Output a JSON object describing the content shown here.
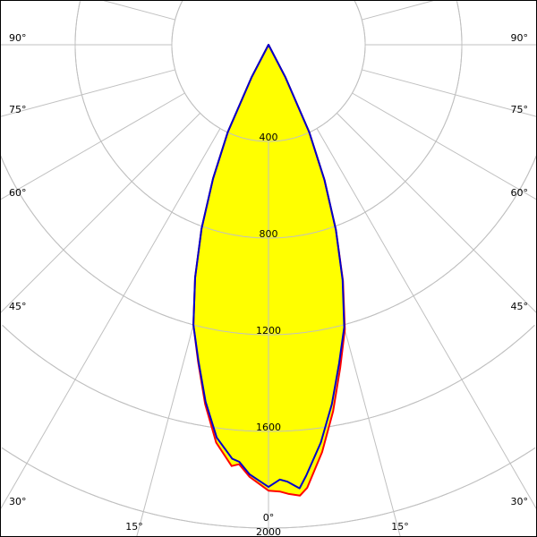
{
  "chart_data": {
    "type": "polar",
    "title": "",
    "radial_ticks": [
      "400",
      "800",
      "1200",
      "1600",
      "2000"
    ],
    "radial_tick_values": [
      400,
      800,
      1200,
      1600,
      2000
    ],
    "radial_range": [
      0,
      2000
    ],
    "angle_ticks": [
      0,
      15,
      30,
      45,
      60,
      75,
      90
    ],
    "angle_labels_left": [
      "90°",
      "75°",
      "60°",
      "45°",
      "30°",
      "15°"
    ],
    "angle_labels_right": [
      "90°",
      "75°",
      "60°",
      "45°",
      "30°",
      "15°"
    ],
    "angle_label_zero": "0°",
    "grid": true,
    "fill_color": "#ffff00",
    "grid_color": "#c0c0c0",
    "series": [
      {
        "color": "#ff0000",
        "angles": [
          -30,
          -27.5,
          -25,
          -22.5,
          -20,
          -17.5,
          -15,
          -12.5,
          -10,
          -7.5,
          -5,
          -4,
          -2.5,
          0,
          1.5,
          2.5,
          4,
          5,
          7.5,
          10,
          12.5,
          15,
          17.5,
          20,
          22.5,
          25,
          27.5,
          30
        ],
        "values": [
          0,
          150,
          400,
          600,
          810,
          1010,
          1200,
          1345,
          1510,
          1660,
          1750,
          1740,
          1790,
          1845,
          1850,
          1860,
          1870,
          1840,
          1700,
          1540,
          1370,
          1220,
          1025,
          815,
          605,
          400,
          150,
          0
        ]
      },
      {
        "color": "#0000cc",
        "angles": [
          -30,
          -27.5,
          -25,
          -22.5,
          -20,
          -17.5,
          -15,
          -12.5,
          -10,
          -7.5,
          -5,
          -4,
          -2.5,
          0,
          1.5,
          2.5,
          4,
          5,
          7.5,
          10,
          12.5,
          15,
          17.5,
          20,
          22.5,
          25,
          27.5,
          30
        ],
        "values": [
          0,
          150,
          400,
          600,
          810,
          1010,
          1200,
          1340,
          1500,
          1640,
          1720,
          1730,
          1780,
          1830,
          1800,
          1810,
          1840,
          1790,
          1660,
          1510,
          1350,
          1210,
          1020,
          815,
          605,
          400,
          150,
          0
        ]
      }
    ]
  }
}
